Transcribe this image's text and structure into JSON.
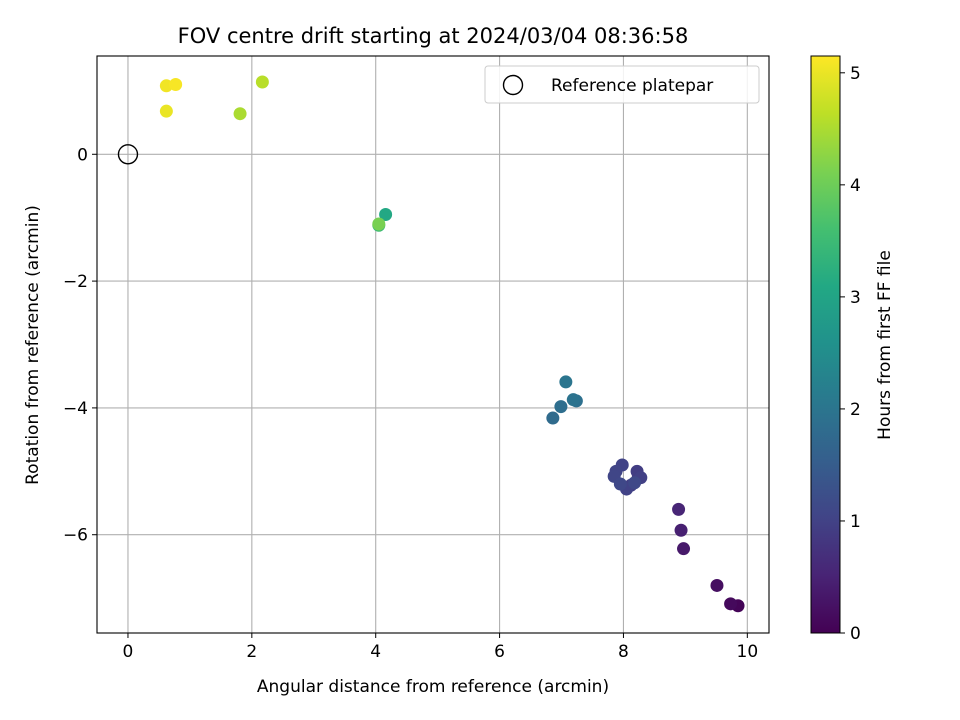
{
  "chart_data": {
    "type": "scatter",
    "title": "FOV centre drift starting at 2024/03/04 08:36:58",
    "xlabel": "Angular distance from reference (arcmin)",
    "ylabel": "Rotation from reference (arcmin)",
    "xlim": [
      -0.5,
      10.35
    ],
    "ylim": [
      -7.55,
      1.55
    ],
    "xticks": [
      0,
      2,
      4,
      6,
      8,
      10
    ],
    "yticks": [
      0,
      -2,
      -4,
      -6
    ],
    "xtick_labels": [
      "0",
      "2",
      "4",
      "6",
      "8",
      "10"
    ],
    "ytick_labels": [
      "0",
      "−2",
      "−4",
      "−6"
    ],
    "grid": true,
    "legend": {
      "position": "top-right",
      "entries": [
        {
          "label": "Reference platepar",
          "marker": "open-circle",
          "color": "#000000"
        }
      ]
    },
    "reference_point": {
      "x": 0,
      "y": 0
    },
    "colorbar": {
      "label": "Hours from first FF file",
      "colormap": "viridis",
      "min": 0,
      "max": 5.15,
      "ticks": [
        0,
        1,
        2,
        3,
        4,
        5
      ],
      "tick_labels": [
        "0",
        "1",
        "2",
        "3",
        "4",
        "5"
      ]
    },
    "points": [
      {
        "x": 9.85,
        "y": -7.12,
        "h": 0.05
      },
      {
        "x": 9.73,
        "y": -7.09,
        "h": 0.12
      },
      {
        "x": 9.51,
        "y": -6.8,
        "h": 0.2
      },
      {
        "x": 8.97,
        "y": -6.22,
        "h": 0.35
      },
      {
        "x": 8.93,
        "y": -5.93,
        "h": 0.45
      },
      {
        "x": 8.89,
        "y": -5.6,
        "h": 0.55
      },
      {
        "x": 8.24,
        "y": -5.08,
        "h": 0.9
      },
      {
        "x": 8.22,
        "y": -5.0,
        "h": 0.92
      },
      {
        "x": 8.12,
        "y": -5.22,
        "h": 0.95
      },
      {
        "x": 8.28,
        "y": -5.1,
        "h": 0.97
      },
      {
        "x": 8.05,
        "y": -5.28,
        "h": 1.0
      },
      {
        "x": 7.98,
        "y": -4.9,
        "h": 1.02
      },
      {
        "x": 7.88,
        "y": -5.0,
        "h": 1.05
      },
      {
        "x": 7.85,
        "y": -5.08,
        "h": 1.07
      },
      {
        "x": 7.95,
        "y": -5.2,
        "h": 1.1
      },
      {
        "x": 8.18,
        "y": -5.18,
        "h": 1.12
      },
      {
        "x": 6.86,
        "y": -4.16,
        "h": 1.8
      },
      {
        "x": 6.99,
        "y": -3.98,
        "h": 1.85
      },
      {
        "x": 7.24,
        "y": -3.89,
        "h": 1.9
      },
      {
        "x": 7.19,
        "y": -3.87,
        "h": 1.95
      },
      {
        "x": 7.07,
        "y": -3.59,
        "h": 2.0
      },
      {
        "x": 4.16,
        "y": -0.95,
        "h": 3.1
      },
      {
        "x": 4.05,
        "y": -1.12,
        "h": 3.5
      },
      {
        "x": 4.05,
        "y": -1.1,
        "h": 4.1
      },
      {
        "x": 1.81,
        "y": 0.64,
        "h": 4.5
      },
      {
        "x": 2.17,
        "y": 1.14,
        "h": 4.6
      },
      {
        "x": 0.62,
        "y": 0.68,
        "h": 5.0
      },
      {
        "x": 0.62,
        "y": 1.08,
        "h": 5.05
      },
      {
        "x": 0.77,
        "y": 1.1,
        "h": 5.1
      }
    ]
  }
}
